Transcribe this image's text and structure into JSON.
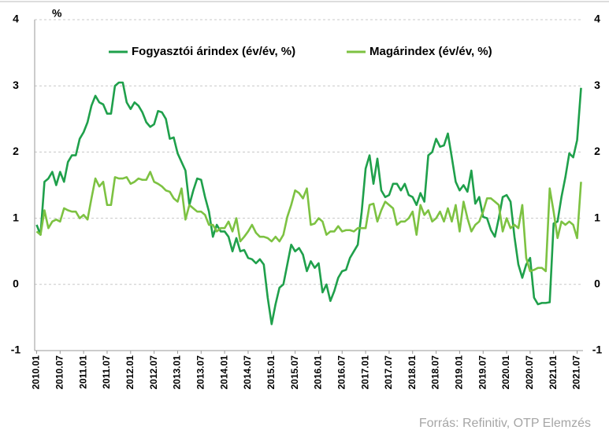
{
  "chart_data": {
    "type": "line",
    "ylabel": "%",
    "source": "Forrás: Refinitiv, OTP Elemzés",
    "categories": [
      "2010.01",
      null,
      null,
      null,
      null,
      null,
      "2010.07",
      null,
      null,
      null,
      null,
      null,
      "2011.01",
      null,
      null,
      null,
      null,
      null,
      "2011.07",
      null,
      null,
      null,
      null,
      null,
      "2012.01",
      null,
      null,
      null,
      null,
      null,
      "2012.07",
      null,
      null,
      null,
      null,
      null,
      "2013.01",
      null,
      null,
      null,
      null,
      null,
      "2013.07",
      null,
      null,
      null,
      null,
      null,
      "2014.01",
      null,
      null,
      null,
      null,
      null,
      "2014.07",
      null,
      null,
      null,
      null,
      null,
      "2015.01",
      null,
      null,
      null,
      null,
      null,
      "2015.07",
      null,
      null,
      null,
      null,
      null,
      "2016.01",
      null,
      null,
      null,
      null,
      null,
      "2016.07",
      null,
      null,
      null,
      null,
      null,
      "2017.01",
      null,
      null,
      null,
      null,
      null,
      "2017.07",
      null,
      null,
      null,
      null,
      null,
      "2018.01",
      null,
      null,
      null,
      null,
      null,
      "2018.07",
      null,
      null,
      null,
      null,
      null,
      "2019.01",
      null,
      null,
      null,
      null,
      null,
      "2019.07",
      null,
      null,
      null,
      null,
      null,
      "2020.01",
      null,
      null,
      null,
      null,
      null,
      "2020.07",
      null,
      null,
      null,
      null,
      null,
      "2021.01",
      null,
      null,
      null,
      null,
      null,
      "2021.07",
      null
    ],
    "series": [
      {
        "name": "Fogyasztói árindex (év/év, %)",
        "color": "#1fa04b",
        "values": [
          0.9,
          0.75,
          1.55,
          1.6,
          1.7,
          1.5,
          1.7,
          1.55,
          1.85,
          1.95,
          1.95,
          2.2,
          2.3,
          2.45,
          2.7,
          2.85,
          2.75,
          2.72,
          2.58,
          2.58,
          3.0,
          3.05,
          3.05,
          2.75,
          2.65,
          2.75,
          2.7,
          2.6,
          2.45,
          2.38,
          2.42,
          2.62,
          2.6,
          2.5,
          2.2,
          2.22,
          1.98,
          1.85,
          1.72,
          1.2,
          1.42,
          1.6,
          1.58,
          1.32,
          1.1,
          0.72,
          0.9,
          0.8,
          0.8,
          0.72,
          0.5,
          0.7,
          0.5,
          0.52,
          0.4,
          0.38,
          0.32,
          0.38,
          0.3,
          -0.2,
          -0.6,
          -0.3,
          -0.05,
          0.0,
          0.3,
          0.6,
          0.5,
          0.55,
          0.45,
          0.2,
          0.35,
          0.25,
          0.32,
          -0.12,
          0.0,
          -0.25,
          -0.1,
          0.1,
          0.2,
          0.22,
          0.4,
          0.5,
          0.6,
          1.1,
          1.75,
          1.95,
          1.52,
          1.9,
          1.42,
          1.32,
          1.35,
          1.52,
          1.52,
          1.42,
          1.52,
          1.35,
          1.32,
          1.2,
          1.38,
          1.25,
          1.95,
          2.0,
          2.2,
          2.08,
          2.1,
          2.28,
          1.92,
          1.55,
          1.42,
          1.5,
          1.4,
          1.72,
          1.22,
          1.32,
          1.02,
          1.0,
          0.82,
          0.72,
          1.0,
          1.32,
          1.35,
          1.25,
          0.72,
          0.3,
          0.1,
          0.3,
          0.4,
          -0.2,
          -0.3,
          -0.28,
          -0.28,
          -0.27,
          0.92,
          0.95,
          1.32,
          1.62,
          1.98,
          1.92,
          2.18,
          2.97
        ]
      },
      {
        "name": "Magárindex (év/év, %)",
        "color": "#7dc242",
        "values": [
          0.8,
          0.75,
          1.12,
          0.85,
          0.95,
          0.98,
          0.95,
          1.15,
          1.12,
          1.1,
          1.1,
          1.0,
          1.05,
          0.98,
          1.3,
          1.6,
          1.48,
          1.55,
          1.2,
          1.2,
          1.62,
          1.6,
          1.6,
          1.62,
          1.52,
          1.55,
          1.6,
          1.58,
          1.58,
          1.7,
          1.55,
          1.52,
          1.48,
          1.42,
          1.4,
          1.3,
          1.25,
          1.45,
          0.98,
          1.2,
          1.15,
          1.1,
          1.1,
          1.05,
          0.9,
          0.9,
          0.8,
          0.85,
          0.85,
          0.95,
          0.8,
          1.0,
          0.65,
          0.72,
          0.8,
          0.9,
          0.78,
          0.72,
          0.72,
          0.7,
          0.65,
          0.72,
          0.65,
          0.75,
          1.02,
          1.2,
          1.42,
          1.38,
          1.3,
          1.45,
          0.9,
          0.92,
          1.0,
          0.95,
          0.75,
          0.8,
          0.8,
          0.88,
          0.8,
          0.82,
          0.82,
          0.8,
          0.85,
          0.85,
          0.85,
          1.2,
          1.22,
          0.95,
          1.12,
          1.25,
          1.2,
          1.15,
          0.9,
          0.95,
          0.95,
          1.0,
          1.1,
          0.75,
          1.2,
          1.05,
          1.12,
          0.95,
          1.0,
          1.1,
          0.95,
          1.15,
          0.95,
          1.2,
          0.8,
          1.25,
          1.0,
          0.8,
          0.9,
          0.95,
          1.1,
          1.3,
          1.3,
          1.25,
          1.2,
          0.8,
          1.0,
          0.85,
          0.9,
          0.85,
          1.2,
          0.4,
          0.2,
          0.22,
          0.25,
          0.25,
          0.2,
          1.45,
          1.1,
          0.7,
          0.95,
          0.9,
          0.95,
          0.9,
          0.7,
          1.55
        ]
      }
    ],
    "ylim": [
      -1,
      4
    ],
    "yticks": [
      -1,
      0,
      1,
      2,
      3,
      4
    ],
    "y2lim": [
      -1,
      4
    ],
    "y2ticks": [
      -1,
      0,
      1,
      2,
      3,
      4
    ],
    "grid": true
  }
}
